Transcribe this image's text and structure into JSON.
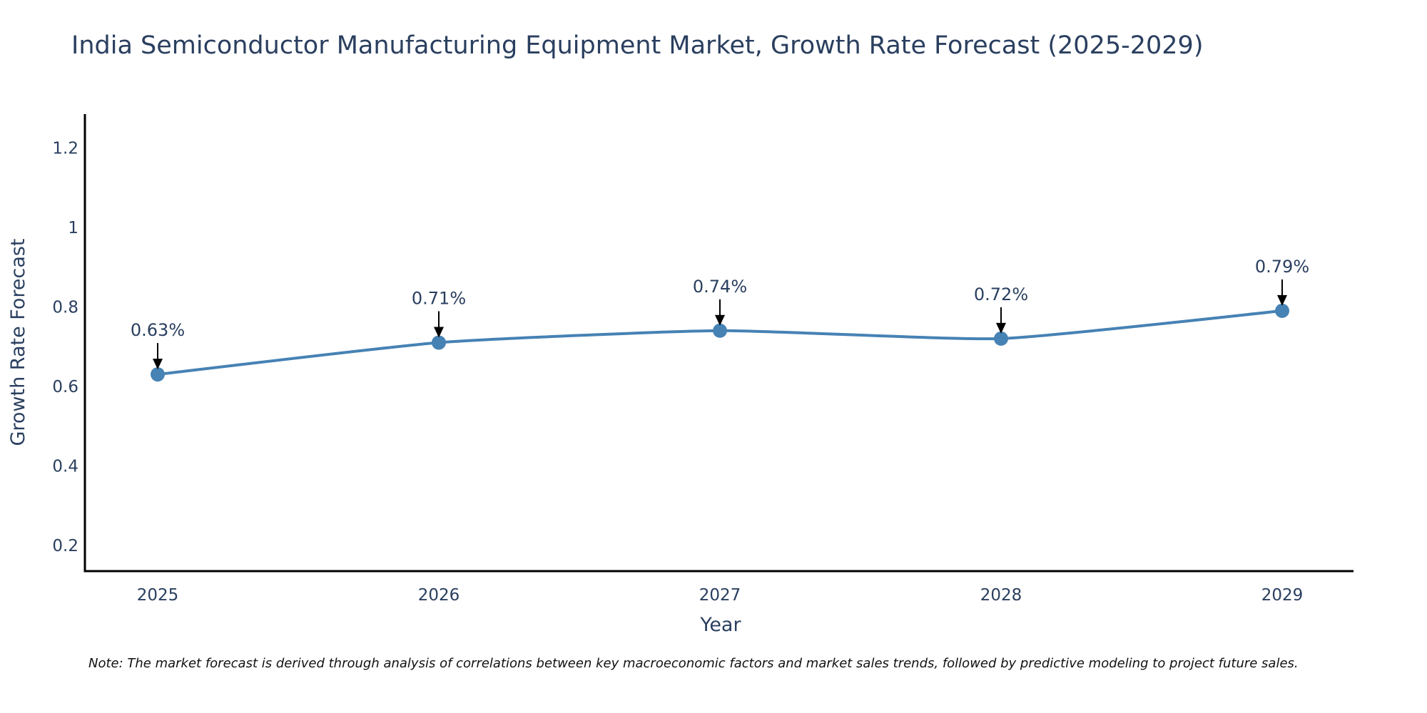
{
  "chart_data": {
    "type": "line",
    "title": "India Semiconductor Manufacturing Equipment Market, Growth Rate Forecast (2025-2029)",
    "xlabel": "Year",
    "ylabel": "Growth Rate Forecast",
    "categories": [
      "2025",
      "2026",
      "2027",
      "2028",
      "2029"
    ],
    "series": [
      {
        "name": "Growth Rate Forecast",
        "values": [
          0.63,
          0.71,
          0.74,
          0.72,
          0.79
        ],
        "labels": [
          "0.63%",
          "0.71%",
          "0.74%",
          "0.72%",
          "0.79%"
        ],
        "color": "#4682b4",
        "line_shape": "spline",
        "markers": true
      }
    ],
    "ylim": [
      0.135,
      1.285
    ],
    "yticks": [
      0.2,
      0.4,
      0.6,
      0.8,
      1,
      1.2
    ],
    "ytick_labels": [
      "0.2",
      "0.4",
      "0.6",
      "0.8",
      "1",
      "1.2"
    ],
    "grid": false,
    "legend": "none"
  },
  "note": "Note: The market forecast is derived through analysis of correlations between key macroeconomic factors and market sales trends, followed by predictive modeling to project future sales."
}
